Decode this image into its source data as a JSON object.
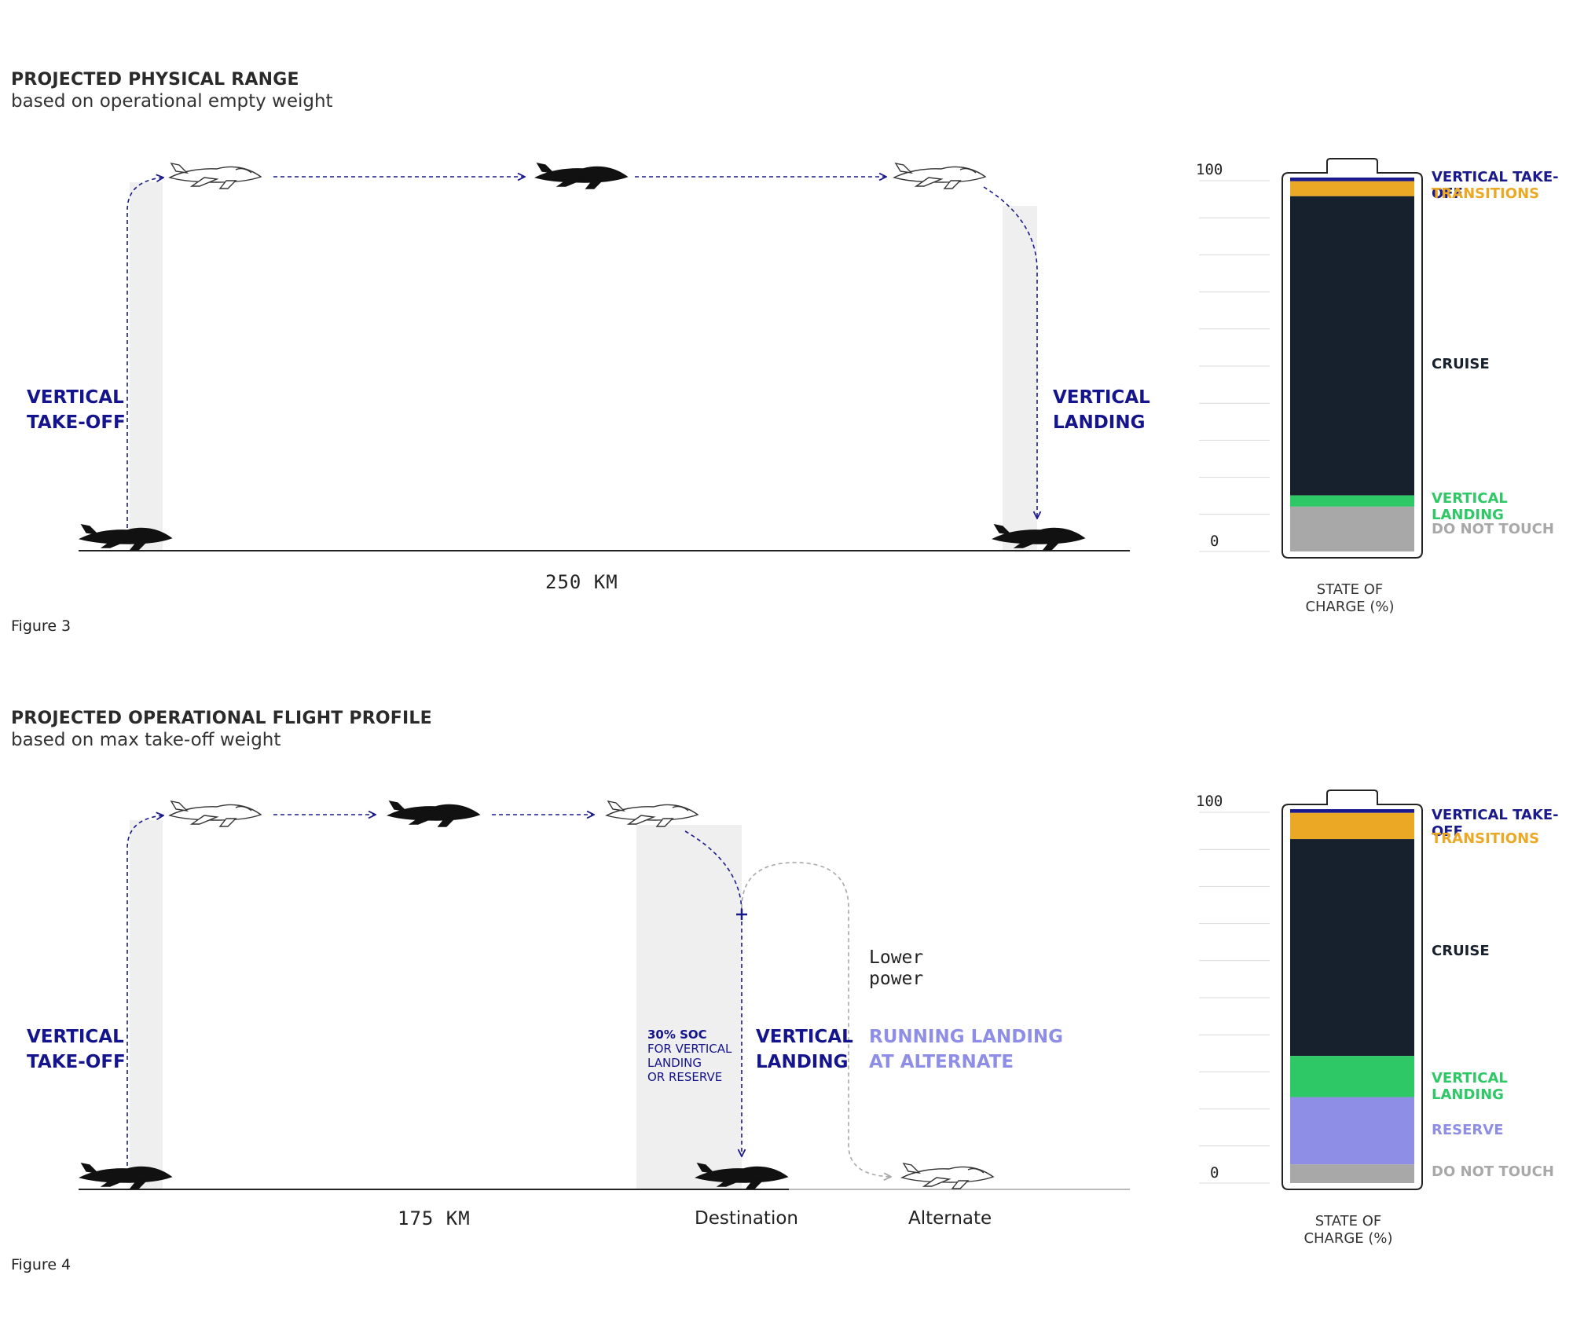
{
  "figure3": {
    "title": "PROJECTED PHYSICAL RANGE",
    "subtitle": "based on operational empty weight",
    "caption": "Figure 3",
    "takeoff_label": [
      "VERTICAL",
      "TAKE-OFF"
    ],
    "landing_label": [
      "VERTICAL",
      "LANDING"
    ],
    "distance": "250 KM",
    "battery": {
      "top_tick": "100",
      "bottom_tick": "0",
      "axis_label": [
        "STATE OF",
        "CHARGE (%)"
      ],
      "segments": [
        {
          "name": "VERTICAL TAKE-OFF",
          "color": "#1a1a8c",
          "percent": 1
        },
        {
          "name": "TRANSITIONS",
          "color": "#eba824",
          "percent": 4
        },
        {
          "name": "CRUISE",
          "color": "#17212d",
          "percent": 80
        },
        {
          "name": "VERTICAL LANDING",
          "color": "#2ec866",
          "percent": 3
        },
        {
          "name": "DO NOT TOUCH",
          "color": "#a8a8a8",
          "percent": 12
        }
      ]
    }
  },
  "figure4": {
    "title": "PROJECTED OPERATIONAL FLIGHT PROFILE",
    "subtitle": "based on max take-off weight",
    "caption": "Figure 4",
    "takeoff_label": [
      "VERTICAL",
      "TAKE-OFF"
    ],
    "landing_label": [
      "VERTICAL",
      "LANDING"
    ],
    "soc_note": {
      "head": "30% SOC",
      "lines": [
        "FOR VERTICAL",
        "LANDING",
        "OR RESERVE"
      ]
    },
    "lower_power": [
      "Lower",
      "power"
    ],
    "alternate_label": [
      "RUNNING LANDING",
      "AT ALTERNATE"
    ],
    "distance": "175 KM",
    "destination": "Destination",
    "alternate": "Alternate",
    "battery": {
      "top_tick": "100",
      "bottom_tick": "0",
      "axis_label": [
        "STATE OF",
        "CHARGE (%)"
      ],
      "segments": [
        {
          "name": "VERTICAL TAKE-OFF",
          "color": "#1a1a8c",
          "percent": 1
        },
        {
          "name": "TRANSITIONS",
          "color": "#eba824",
          "percent": 7
        },
        {
          "name": "CRUISE",
          "color": "#17212d",
          "percent": 58
        },
        {
          "name": "VERTICAL LANDING",
          "color": "#2ec866",
          "percent": 11
        },
        {
          "name": "RESERVE",
          "color": "#8e8ee6",
          "percent": 18
        },
        {
          "name": "DO NOT TOUCH",
          "color": "#a8a8a8",
          "percent": 5
        }
      ]
    }
  },
  "colors": {
    "path": "#1a1a8c",
    "alternate_path": "#a8a8a8",
    "shade": "#efefef",
    "reserve_text": "#8e8ee6",
    "grey_text": "#a8a8a8",
    "green_text": "#2ec866",
    "orange_text": "#eba824"
  }
}
